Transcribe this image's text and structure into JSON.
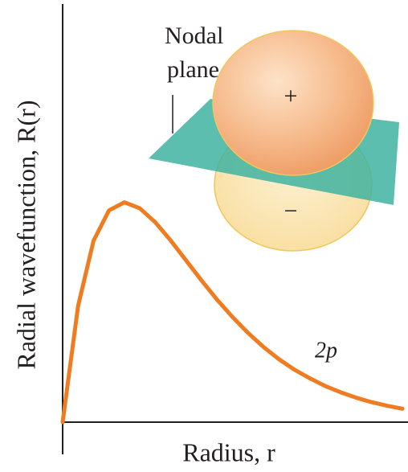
{
  "chart_data": {
    "type": "line",
    "x_label": "Radius, r",
    "y_label": "Radial wavefunction, R(r)",
    "xlim": [
      0,
      11
    ],
    "ylim": [
      0,
      1.4
    ],
    "x": [
      0,
      0.5,
      1,
      1.5,
      2,
      2.5,
      3,
      3.5,
      4,
      4.5,
      5,
      5.5,
      6,
      6.5,
      7,
      7.5,
      8,
      8.5,
      9,
      9.5,
      10,
      10.5,
      11
    ],
    "series": [
      {
        "name": "2p",
        "color": "#f07c22",
        "values": [
          0,
          0.389,
          0.607,
          0.709,
          0.736,
          0.716,
          0.669,
          0.608,
          0.541,
          0.474,
          0.41,
          0.352,
          0.299,
          0.252,
          0.211,
          0.176,
          0.147,
          0.121,
          0.1,
          0.082,
          0.067,
          0.055,
          0.045
        ]
      }
    ],
    "annotations": {
      "nodal_plane": [
        "Nodal",
        "plane"
      ],
      "positive_lobe": "+",
      "negative_lobe": "−"
    }
  }
}
